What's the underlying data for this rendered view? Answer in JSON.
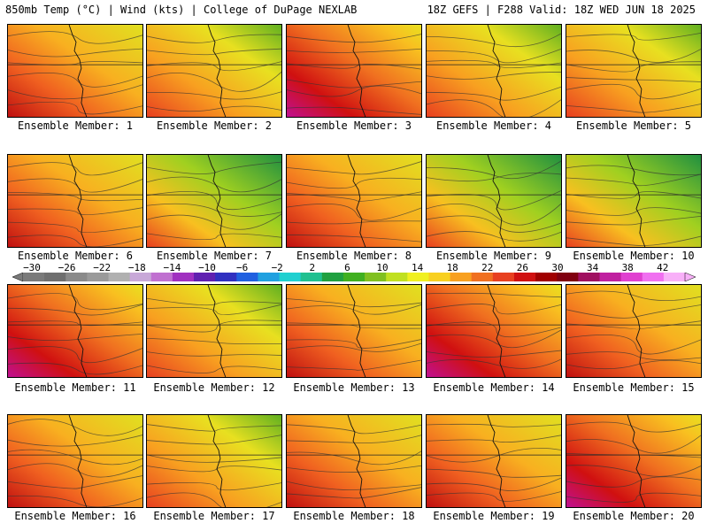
{
  "header": {
    "left": "850mb Temp (°C) | Wind (kts) | College of DuPage NEXLAB",
    "right": "18Z GEFS | F288 Valid: 18Z WED JUN 18 2025"
  },
  "members": [
    {
      "label": "Ensemble Member: 1",
      "warm": 0.55
    },
    {
      "label": "Ensemble Member: 2",
      "warm": 0.45
    },
    {
      "label": "Ensemble Member: 3",
      "warm": 0.85
    },
    {
      "label": "Ensemble Member: 4",
      "warm": 0.45
    },
    {
      "label": "Ensemble Member: 5",
      "warm": 0.5
    },
    {
      "label": "Ensemble Member: 6",
      "warm": 0.55
    },
    {
      "label": "Ensemble Member: 7",
      "warm": 0.4
    },
    {
      "label": "Ensemble Member: 8",
      "warm": 0.55
    },
    {
      "label": "Ensemble Member: 9",
      "warm": 0.4
    },
    {
      "label": "Ensemble Member: 10",
      "warm": 0.35
    },
    {
      "label": "Ensemble Member: 11",
      "warm": 0.75
    },
    {
      "label": "Ensemble Member: 12",
      "warm": 0.45
    },
    {
      "label": "Ensemble Member: 13",
      "warm": 0.6
    },
    {
      "label": "Ensemble Member: 14",
      "warm": 0.75
    },
    {
      "label": "Ensemble Member: 15",
      "warm": 0.65
    },
    {
      "label": "Ensemble Member: 16",
      "warm": 0.55
    },
    {
      "label": "Ensemble Member: 17",
      "warm": 0.45
    },
    {
      "label": "Ensemble Member: 18",
      "warm": 0.55
    },
    {
      "label": "Ensemble Member: 19",
      "warm": 0.6
    },
    {
      "label": "Ensemble Member: 20",
      "warm": 0.8
    }
  ],
  "colorbar": {
    "ticks": [
      "−30",
      "−26",
      "−22",
      "−18",
      "−14",
      "−10",
      "−6",
      "−2",
      "2",
      "6",
      "10",
      "14",
      "18",
      "22",
      "26",
      "30",
      "34",
      "38",
      "42"
    ],
    "colors": [
      "#7a7a7a",
      "#6f6f6f",
      "#8a8a8a",
      "#9a9a9a",
      "#b0b0b0",
      "#c8a8d8",
      "#c070d0",
      "#a030c0",
      "#6020b0",
      "#3030c0",
      "#2060e0",
      "#20a0e0",
      "#20d0d0",
      "#20c090",
      "#20a040",
      "#40b020",
      "#80c020",
      "#c0e020",
      "#f0f020",
      "#f8d020",
      "#f8a020",
      "#f07020",
      "#e84020",
      "#d01010",
      "#a00000",
      "#800010",
      "#a01060",
      "#c020a0",
      "#e040d0",
      "#f070f0",
      "#f8b0f8"
    ]
  }
}
